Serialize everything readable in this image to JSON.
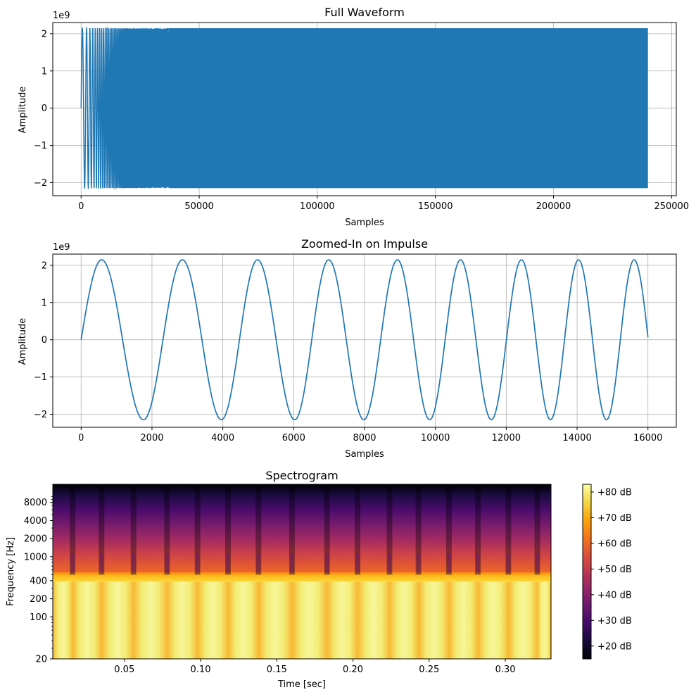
{
  "colors": {
    "line": "#1f77b4",
    "grid": "#b0b0b0",
    "axis": "#000000",
    "colormap": "inferno"
  },
  "chart_data": [
    {
      "type": "line",
      "title": "Full Waveform",
      "xlabel": "Samples",
      "ylabel": "Amplitude",
      "y_offset_text": "1e9",
      "xlim": [
        -12000,
        252000
      ],
      "ylim": [
        -2.35,
        2.3
      ],
      "xticks": [
        0,
        50000,
        100000,
        150000,
        200000,
        250000
      ],
      "xtick_labels": [
        "0",
        "50000",
        "100000",
        "150000",
        "200000",
        "250000"
      ],
      "yticks": [
        -2,
        -1,
        0,
        1,
        2
      ],
      "ytick_labels": [
        "−2",
        "−1",
        "0",
        "1",
        "2"
      ],
      "grid": true,
      "series": [
        {
          "description_values": "chirp-like sine, amplitude in units of 1e9, frequency rising over the first ~37000 samples, then dense oscillation to ~240000 samples",
          "x_start": 0,
          "x_end": 240000,
          "amplitude": 2.147,
          "dense_from": 37000,
          "end_value": 0.55
        }
      ]
    },
    {
      "type": "line",
      "title": "Zoomed-In on Impulse",
      "xlabel": "Samples",
      "ylabel": "Amplitude",
      "y_offset_text": "1e9",
      "xlim": [
        -800,
        16800
      ],
      "ylim": [
        -2.35,
        2.3
      ],
      "xticks": [
        0,
        2000,
        4000,
        6000,
        8000,
        10000,
        12000,
        14000,
        16000
      ],
      "xtick_labels": [
        "0",
        "2000",
        "4000",
        "6000",
        "8000",
        "10000",
        "12000",
        "14000",
        "16000"
      ],
      "yticks": [
        -2,
        -1,
        0,
        1,
        2
      ],
      "ytick_labels": [
        "−2",
        "−1",
        "0",
        "1",
        "2"
      ],
      "grid": true,
      "series": [
        {
          "amplitude": 2.147,
          "peaks_x": [
            580,
            2860,
            4980,
            6990,
            8930,
            10710,
            12430,
            14040,
            15610
          ],
          "troughs_x": [
            1760,
            3960,
            6030,
            7980,
            9840,
            11580,
            13250,
            14830
          ],
          "x_start": 0,
          "x_end": 16000,
          "end_value": 0.07
        }
      ]
    },
    {
      "type": "heatmap",
      "title": "Spectrogram",
      "xlabel": "Time [sec]",
      "ylabel": "Frequency [Hz]",
      "xlim": [
        0.003,
        0.33
      ],
      "ylim_hz": [
        20,
        16000
      ],
      "yscale": "log",
      "xticks": [
        0.05,
        0.1,
        0.15,
        0.2,
        0.25,
        0.3
      ],
      "xtick_labels": [
        "0.05",
        "0.10",
        "0.15",
        "0.20",
        "0.25",
        "0.30"
      ],
      "yticks": [
        20,
        100,
        200,
        400,
        1000,
        2000,
        4000,
        8000
      ],
      "ytick_labels": [
        "20",
        "100",
        "200",
        "400",
        "1000",
        "2000",
        "4000",
        "8000"
      ],
      "frame_boundaries_sec": [
        0.016,
        0.035,
        0.056,
        0.078,
        0.098,
        0.118,
        0.138,
        0.16,
        0.183,
        0.203,
        0.224,
        0.243,
        0.263,
        0.282,
        0.302,
        0.321
      ],
      "low_band_top_hz": 500,
      "colorbar": {
        "range_db": [
          15,
          83
        ],
        "ticks_db": [
          20,
          30,
          40,
          50,
          60,
          70,
          80
        ],
        "tick_labels": [
          "+20 dB",
          "+30 dB",
          "+40 dB",
          "+50 dB",
          "+60 dB",
          "+70 dB",
          "+80 dB"
        ]
      }
    }
  ]
}
